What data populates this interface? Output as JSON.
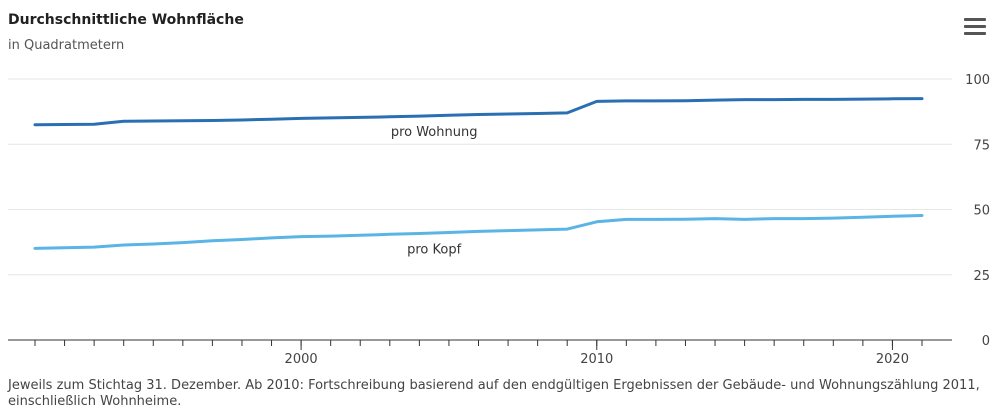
{
  "header": {
    "title": "Durchschnittliche Wohnfläche",
    "subtitle": "in Quadratmetern",
    "menu_icon": "hamburger-menu-icon"
  },
  "footnote": "Jeweils zum Stichtag 31. Dezember. Ab 2010: Fortschreibung basierend auf den endgültigen Ergebnissen der Gebäude- und Wohnungszählung 2011, einschließlich Wohnheime.",
  "chart_data": {
    "type": "line",
    "title": "Durchschnittliche Wohnfläche",
    "subtitle": "in Quadratmetern",
    "xlim": [
      1991,
      2021
    ],
    "ylim": [
      0,
      100
    ],
    "x_ticks": [
      2000,
      2010,
      2020
    ],
    "y_ticks": [
      0,
      25,
      50,
      75,
      100
    ],
    "y_axis_side": "right",
    "grid": true,
    "series": [
      {
        "name": "pro Wohnung",
        "color": "#2a6fb2",
        "x": [
          1991,
          1993,
          1994,
          1995,
          1996,
          1997,
          1998,
          1999,
          2000,
          2001,
          2002,
          2003,
          2004,
          2005,
          2006,
          2007,
          2008,
          2009,
          2010,
          2011,
          2012,
          2013,
          2014,
          2015,
          2016,
          2017,
          2018,
          2019,
          2020,
          2021
        ],
        "values": [
          82.5,
          82.7,
          83.8,
          83.9,
          84.0,
          84.1,
          84.3,
          84.6,
          84.9,
          85.1,
          85.3,
          85.5,
          85.8,
          86.1,
          86.4,
          86.6,
          86.8,
          87.0,
          91.4,
          91.6,
          91.6,
          91.7,
          91.9,
          92.1,
          92.1,
          92.2,
          92.2,
          92.3,
          92.4,
          92.5
        ]
      },
      {
        "name": "pro Kopf",
        "color": "#5ab4e5",
        "x": [
          1991,
          1993,
          1994,
          1995,
          1996,
          1997,
          1998,
          1999,
          2000,
          2001,
          2002,
          2003,
          2004,
          2005,
          2006,
          2007,
          2008,
          2009,
          2010,
          2011,
          2012,
          2013,
          2014,
          2015,
          2016,
          2017,
          2018,
          2019,
          2020,
          2021
        ],
        "values": [
          35.1,
          35.6,
          36.4,
          36.8,
          37.3,
          38.0,
          38.5,
          39.1,
          39.6,
          39.8,
          40.1,
          40.5,
          40.8,
          41.2,
          41.6,
          41.9,
          42.2,
          42.5,
          45.3,
          46.2,
          46.2,
          46.3,
          46.5,
          46.2,
          46.5,
          46.5,
          46.7,
          47.0,
          47.4,
          47.7
        ]
      }
    ]
  }
}
